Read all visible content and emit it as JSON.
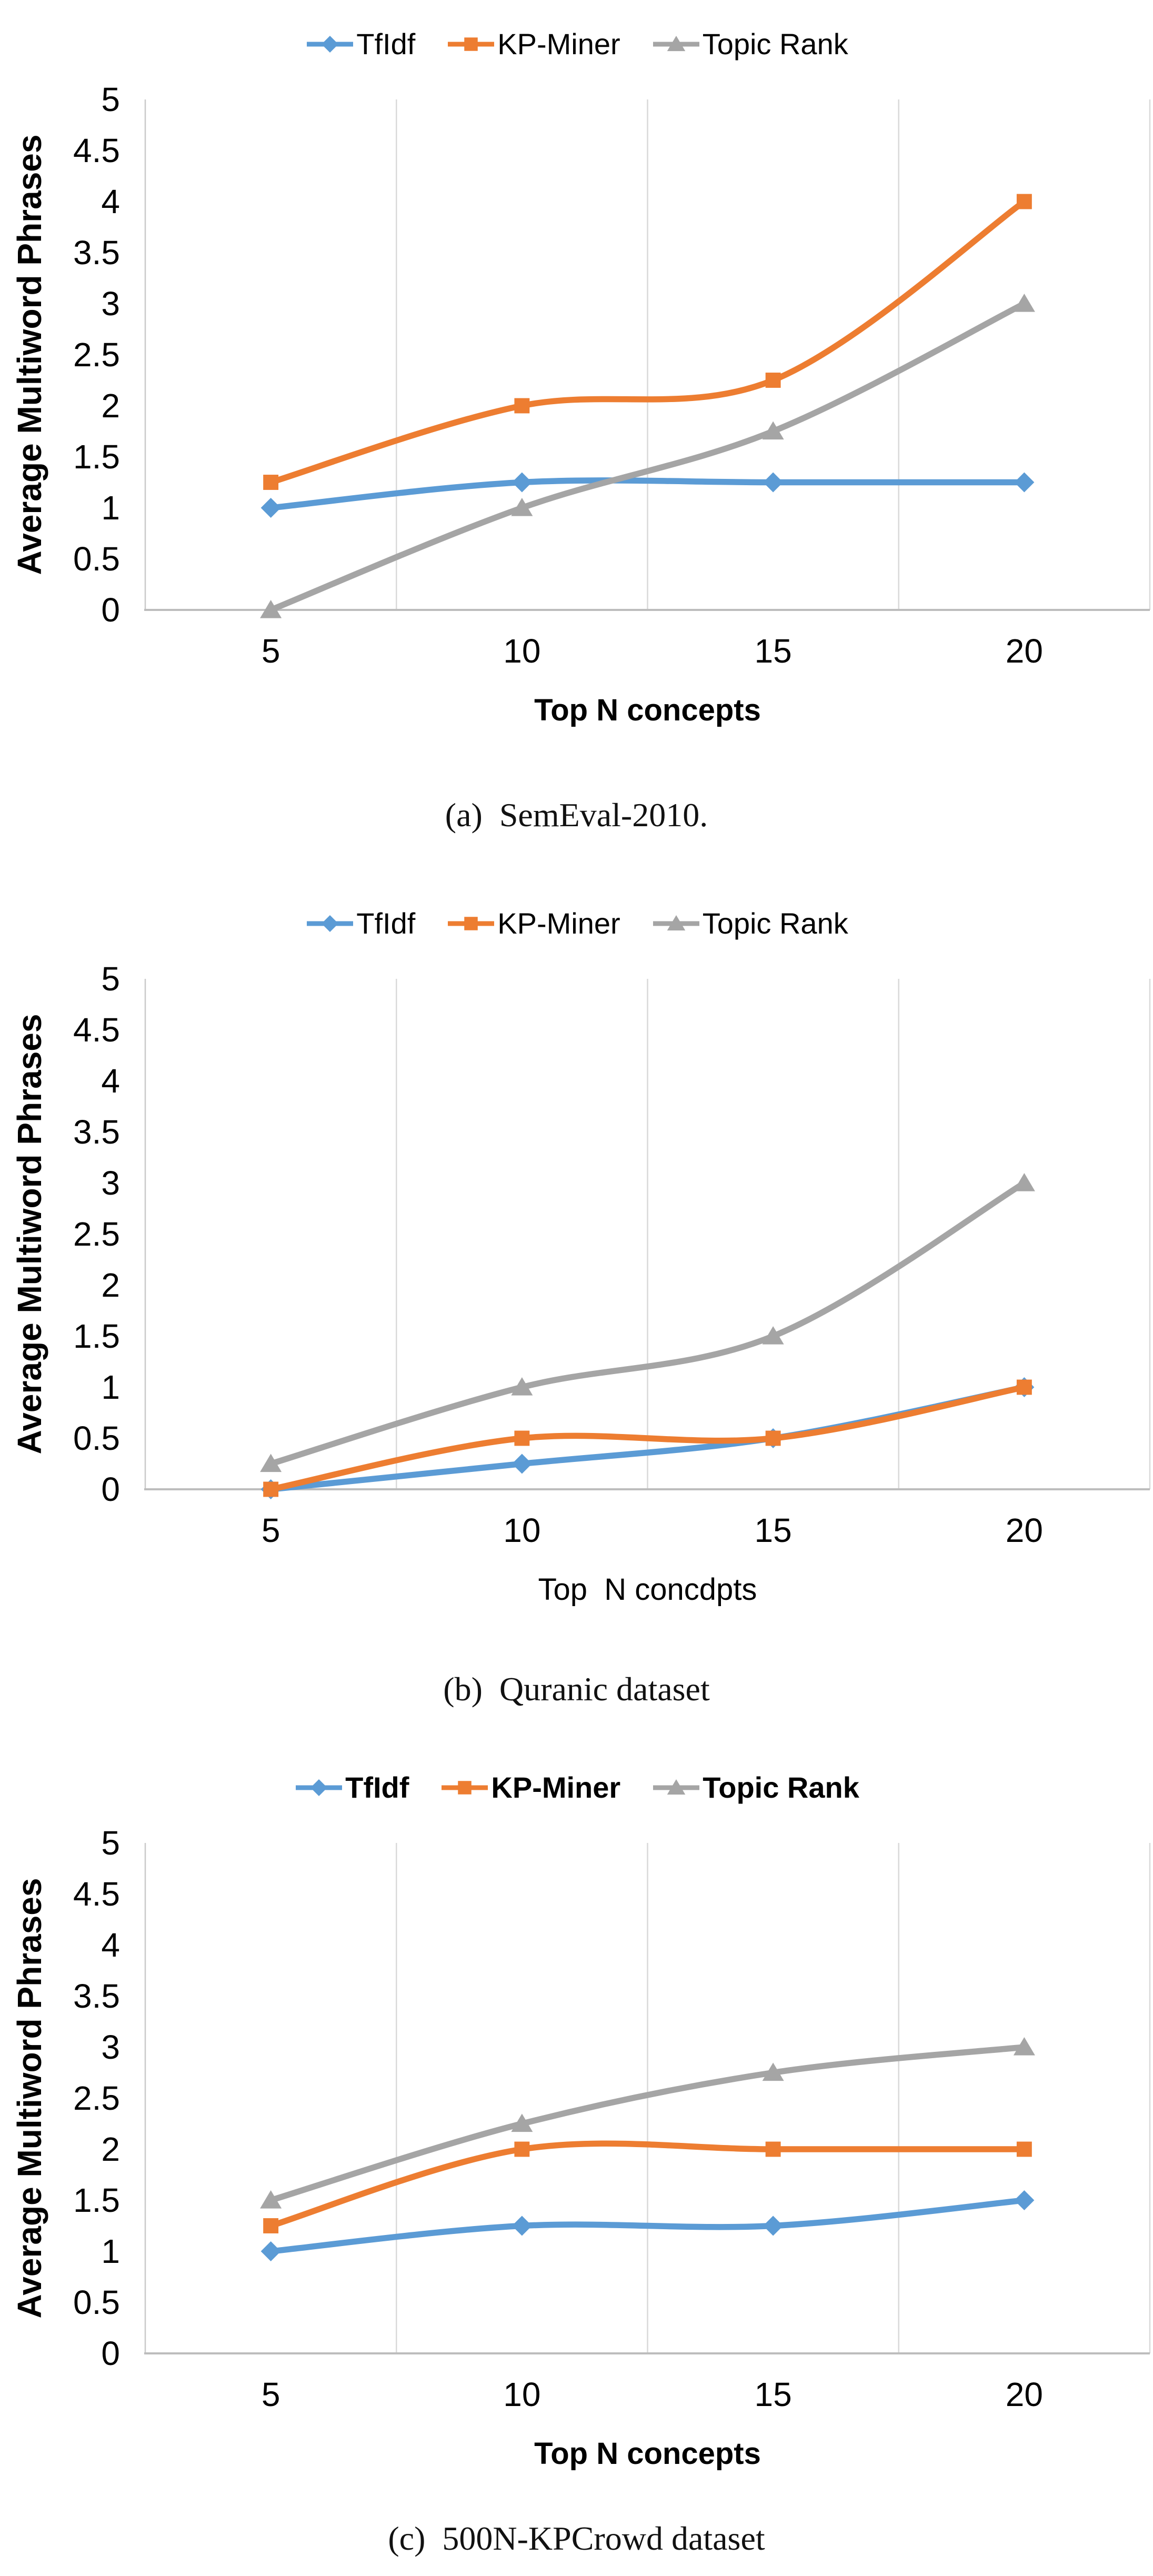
{
  "page": {
    "background": "#FFFFFF"
  },
  "palette": {
    "tfidf_blue": "#5B9BD5",
    "kpminer_orange": "#ED7D31",
    "topicrank_gray": "#A5A5A5",
    "gridline": "#D9D9D9",
    "x_axis_line": "#BDBDBD",
    "y_axis_line": "#C9C9C9",
    "text": "#000000"
  },
  "chart_data": [
    {
      "id": "a",
      "type": "line",
      "caption": "(a)  SemEval-2010.",
      "xlabel": "Top N concepts",
      "ylabel": "Average Multiword Phrases",
      "x": [
        5,
        10,
        15,
        20
      ],
      "xtick_labels": [
        "5",
        "10",
        "15",
        "20"
      ],
      "ytick_labels": [
        "0",
        "0.5",
        "1",
        "1.5",
        "2",
        "2.5",
        "3",
        "3.5",
        "4",
        "4.5",
        "5"
      ],
      "ylim": [
        0,
        5
      ],
      "grid": "vertical-only",
      "legend_position": "top-center",
      "styles": {
        "legend_bold": false,
        "xlabel_bold": true,
        "smooth_lines": true
      },
      "series": [
        {
          "name": "TfIdf",
          "color": "#5B9BD5",
          "marker": "diamond",
          "values": [
            1.0,
            1.25,
            1.25,
            1.25
          ]
        },
        {
          "name": "KP-Miner",
          "color": "#ED7D31",
          "marker": "square",
          "values": [
            1.25,
            2.0,
            2.25,
            4.0
          ]
        },
        {
          "name": "Topic Rank",
          "color": "#A5A5A5",
          "marker": "triangle",
          "values": [
            0.0,
            1.0,
            1.75,
            3.0
          ]
        }
      ]
    },
    {
      "id": "b",
      "type": "line",
      "caption": "(b)  Quranic dataset",
      "xlabel": "Top  N concdpts",
      "ylabel": "Average Multiword Phrases",
      "x": [
        5,
        10,
        15,
        20
      ],
      "xtick_labels": [
        "5",
        "10",
        "15",
        "20"
      ],
      "ytick_labels": [
        "0",
        "0.5",
        "1",
        "1.5",
        "2",
        "2.5",
        "3",
        "3.5",
        "4",
        "4.5",
        "5"
      ],
      "ylim": [
        0,
        5
      ],
      "grid": "vertical-only",
      "legend_position": "top-center",
      "styles": {
        "legend_bold": false,
        "xlabel_bold": false,
        "smooth_lines": true
      },
      "series": [
        {
          "name": "TfIdf",
          "color": "#5B9BD5",
          "marker": "diamond",
          "values": [
            0.0,
            0.25,
            0.5,
            1.0
          ]
        },
        {
          "name": "KP-Miner",
          "color": "#ED7D31",
          "marker": "square",
          "values": [
            0.0,
            0.5,
            0.5,
            1.0
          ]
        },
        {
          "name": "Topic Rank",
          "color": "#A5A5A5",
          "marker": "triangle",
          "values": [
            0.25,
            1.0,
            1.5,
            3.0
          ]
        }
      ]
    },
    {
      "id": "c",
      "type": "line",
      "caption": "(c)  500N-KPCrowd dataset",
      "xlabel": "Top N concepts",
      "ylabel": "Average Multiword Phrases",
      "x": [
        5,
        10,
        15,
        20
      ],
      "xtick_labels": [
        "5",
        "10",
        "15",
        "20"
      ],
      "ytick_labels": [
        "0",
        "0.5",
        "1",
        "1.5",
        "2",
        "2.5",
        "3",
        "3.5",
        "4",
        "4.5",
        "5"
      ],
      "ylim": [
        0,
        5
      ],
      "grid": "vertical-only",
      "legend_position": "top-center",
      "styles": {
        "legend_bold": true,
        "xlabel_bold": true,
        "smooth_lines": true
      },
      "series": [
        {
          "name": "TfIdf",
          "color": "#5B9BD5",
          "marker": "diamond",
          "values": [
            1.0,
            1.25,
            1.25,
            1.5
          ]
        },
        {
          "name": "KP-Miner",
          "color": "#ED7D31",
          "marker": "square",
          "values": [
            1.25,
            2.0,
            2.0,
            2.0
          ]
        },
        {
          "name": "Topic Rank",
          "color": "#A5A5A5",
          "marker": "triangle",
          "values": [
            1.5,
            2.25,
            2.75,
            3.0
          ]
        }
      ]
    }
  ]
}
